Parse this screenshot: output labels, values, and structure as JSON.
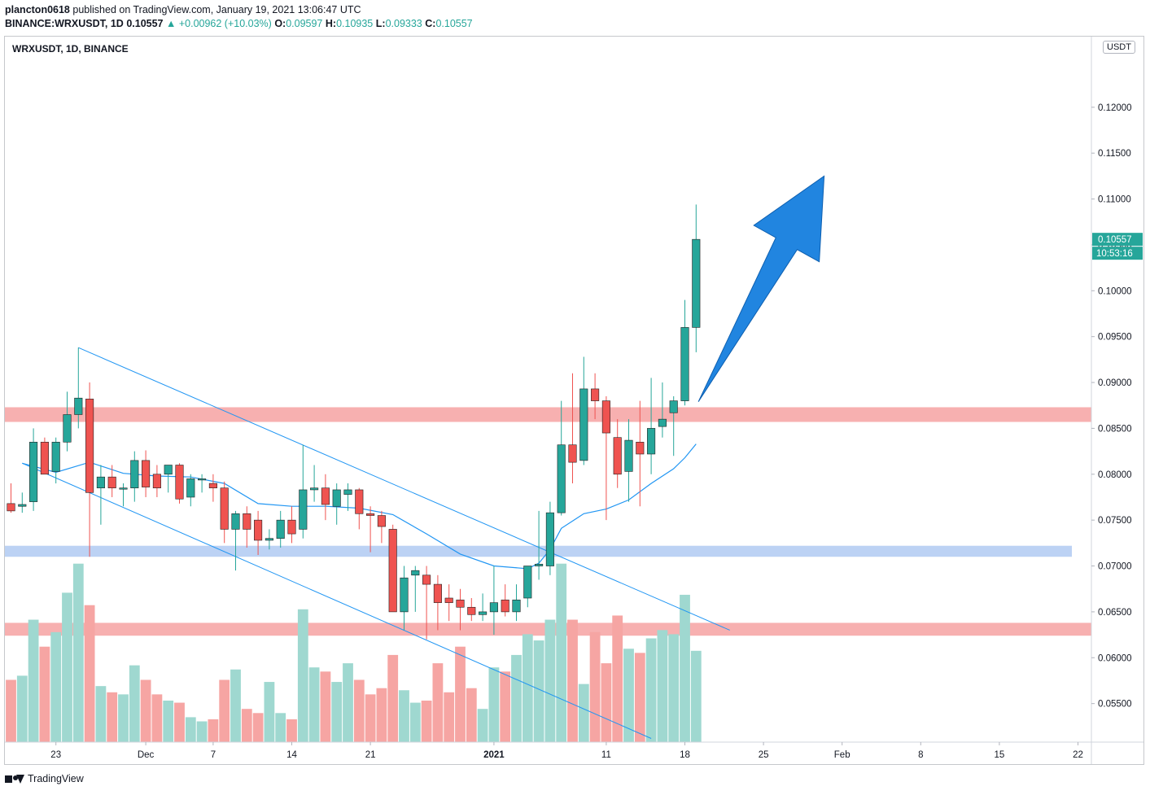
{
  "header": {
    "publisher": "plancton0618",
    "published_text": "published on TradingView.com, January 19, 2021 13:06:47 UTC",
    "symbol_line": "BINANCE:WRXUSDT, 1D",
    "last": "0.10557",
    "change": "▲ +0.00962 (+10.03%)",
    "o_label": "O:",
    "o": "0.09597",
    "h_label": "H:",
    "h": "0.10935",
    "l_label": "L:",
    "l": "0.09333",
    "c_label": "C:",
    "c": "0.10557"
  },
  "legend_title": "WRXUSDT, 1D, BINANCE",
  "unit": "USDT",
  "footer": {
    "brand": "TradingView"
  },
  "colors": {
    "up": "#26a69a",
    "down": "#ef5350",
    "vol_up": "#9fd8d0",
    "vol_down": "#f6a5a3",
    "sma": "#2196f3",
    "channel": "#2196f3",
    "red_zone": "#f7b0b0",
    "blue_zone": "#bcd2f4",
    "arrow": "#2185e0"
  },
  "chart_data": {
    "type": "candlestick",
    "symbol": "WRXUSDT",
    "interval": "1D",
    "exchange": "BINANCE",
    "ylim": [
      0.0508,
      0.1277
    ],
    "y_ticks": [
      "0.05500",
      "0.06000",
      "0.06500",
      "0.07000",
      "0.07500",
      "0.08000",
      "0.08500",
      "0.09000",
      "0.09500",
      "0.10000",
      "0.10500",
      "0.11000",
      "0.11500",
      "0.12000"
    ],
    "x_ticks": [
      {
        "label": "23",
        "i": 4
      },
      {
        "label": "Dec",
        "i": 12
      },
      {
        "label": "7",
        "i": 18
      },
      {
        "label": "14",
        "i": 25
      },
      {
        "label": "21",
        "i": 32
      },
      {
        "label": "2021",
        "i": 43
      },
      {
        "label": "11",
        "i": 53
      },
      {
        "label": "18",
        "i": 60
      },
      {
        "label": "25",
        "i": 67
      },
      {
        "label": "Feb",
        "i": 74
      },
      {
        "label": "8",
        "i": 81
      },
      {
        "label": "15",
        "i": 88
      },
      {
        "label": "22",
        "i": 95
      }
    ],
    "candles": [
      {
        "o": 0.0768,
        "h": 0.079,
        "l": 0.0758,
        "c": 0.076
      },
      {
        "o": 0.0765,
        "h": 0.078,
        "l": 0.0758,
        "c": 0.0767
      },
      {
        "o": 0.077,
        "h": 0.085,
        "l": 0.076,
        "c": 0.0835
      },
      {
        "o": 0.0835,
        "h": 0.084,
        "l": 0.08,
        "c": 0.08
      },
      {
        "o": 0.0803,
        "h": 0.084,
        "l": 0.079,
        "c": 0.0835
      },
      {
        "o": 0.0835,
        "h": 0.089,
        "l": 0.0825,
        "c": 0.0865
      },
      {
        "o": 0.0865,
        "h": 0.0938,
        "l": 0.085,
        "c": 0.0883
      },
      {
        "o": 0.0882,
        "h": 0.09,
        "l": 0.071,
        "c": 0.078
      },
      {
        "o": 0.0785,
        "h": 0.081,
        "l": 0.0745,
        "c": 0.0797
      },
      {
        "o": 0.0797,
        "h": 0.081,
        "l": 0.0775,
        "c": 0.0785
      },
      {
        "o": 0.0785,
        "h": 0.079,
        "l": 0.0765,
        "c": 0.0785
      },
      {
        "o": 0.0785,
        "h": 0.0825,
        "l": 0.077,
        "c": 0.0815
      },
      {
        "o": 0.0815,
        "h": 0.0826,
        "l": 0.0775,
        "c": 0.0786
      },
      {
        "o": 0.08,
        "h": 0.081,
        "l": 0.0775,
        "c": 0.0785
      },
      {
        "o": 0.08,
        "h": 0.081,
        "l": 0.078,
        "c": 0.081
      },
      {
        "o": 0.081,
        "h": 0.0812,
        "l": 0.0768,
        "c": 0.0773
      },
      {
        "o": 0.0775,
        "h": 0.08,
        "l": 0.0765,
        "c": 0.0795
      },
      {
        "o": 0.0795,
        "h": 0.08,
        "l": 0.078,
        "c": 0.0795
      },
      {
        "o": 0.079,
        "h": 0.08,
        "l": 0.077,
        "c": 0.0785
      },
      {
        "o": 0.0785,
        "h": 0.0792,
        "l": 0.0725,
        "c": 0.074
      },
      {
        "o": 0.074,
        "h": 0.076,
        "l": 0.0695,
        "c": 0.0757
      },
      {
        "o": 0.0757,
        "h": 0.0765,
        "l": 0.072,
        "c": 0.074
      },
      {
        "o": 0.075,
        "h": 0.076,
        "l": 0.0712,
        "c": 0.0728
      },
      {
        "o": 0.0728,
        "h": 0.074,
        "l": 0.0718,
        "c": 0.073
      },
      {
        "o": 0.073,
        "h": 0.076,
        "l": 0.072,
        "c": 0.075
      },
      {
        "o": 0.075,
        "h": 0.0765,
        "l": 0.0725,
        "c": 0.0735
      },
      {
        "o": 0.074,
        "h": 0.0832,
        "l": 0.073,
        "c": 0.0783
      },
      {
        "o": 0.0783,
        "h": 0.081,
        "l": 0.077,
        "c": 0.0785
      },
      {
        "o": 0.0785,
        "h": 0.08,
        "l": 0.075,
        "c": 0.0767
      },
      {
        "o": 0.0765,
        "h": 0.079,
        "l": 0.0745,
        "c": 0.0783
      },
      {
        "o": 0.0778,
        "h": 0.079,
        "l": 0.076,
        "c": 0.0783
      },
      {
        "o": 0.0783,
        "h": 0.0785,
        "l": 0.074,
        "c": 0.0757
      },
      {
        "o": 0.0757,
        "h": 0.0765,
        "l": 0.0715,
        "c": 0.0755
      },
      {
        "o": 0.0755,
        "h": 0.076,
        "l": 0.0725,
        "c": 0.0743
      },
      {
        "o": 0.074,
        "h": 0.0745,
        "l": 0.065,
        "c": 0.065
      },
      {
        "o": 0.065,
        "h": 0.07,
        "l": 0.063,
        "c": 0.0687
      },
      {
        "o": 0.069,
        "h": 0.07,
        "l": 0.065,
        "c": 0.0695
      },
      {
        "o": 0.069,
        "h": 0.07,
        "l": 0.062,
        "c": 0.068
      },
      {
        "o": 0.068,
        "h": 0.069,
        "l": 0.063,
        "c": 0.066
      },
      {
        "o": 0.0665,
        "h": 0.068,
        "l": 0.064,
        "c": 0.066
      },
      {
        "o": 0.0663,
        "h": 0.0675,
        "l": 0.063,
        "c": 0.0655
      },
      {
        "o": 0.0655,
        "h": 0.0665,
        "l": 0.064,
        "c": 0.0647
      },
      {
        "o": 0.0647,
        "h": 0.067,
        "l": 0.064,
        "c": 0.065
      },
      {
        "o": 0.065,
        "h": 0.07,
        "l": 0.0625,
        "c": 0.066
      },
      {
        "o": 0.0663,
        "h": 0.068,
        "l": 0.0645,
        "c": 0.065
      },
      {
        "o": 0.065,
        "h": 0.068,
        "l": 0.064,
        "c": 0.0663
      },
      {
        "o": 0.0665,
        "h": 0.07,
        "l": 0.0655,
        "c": 0.07
      },
      {
        "o": 0.07,
        "h": 0.076,
        "l": 0.0685,
        "c": 0.0702
      },
      {
        "o": 0.07,
        "h": 0.077,
        "l": 0.069,
        "c": 0.0758
      },
      {
        "o": 0.0758,
        "h": 0.088,
        "l": 0.0755,
        "c": 0.0832
      },
      {
        "o": 0.0832,
        "h": 0.091,
        "l": 0.079,
        "c": 0.0813
      },
      {
        "o": 0.0815,
        "h": 0.0928,
        "l": 0.081,
        "c": 0.0893
      },
      {
        "o": 0.0893,
        "h": 0.091,
        "l": 0.086,
        "c": 0.088
      },
      {
        "o": 0.088,
        "h": 0.0885,
        "l": 0.075,
        "c": 0.0845
      },
      {
        "o": 0.084,
        "h": 0.086,
        "l": 0.0785,
        "c": 0.08
      },
      {
        "o": 0.0803,
        "h": 0.086,
        "l": 0.077,
        "c": 0.0837
      },
      {
        "o": 0.0835,
        "h": 0.088,
        "l": 0.0765,
        "c": 0.0822
      },
      {
        "o": 0.0822,
        "h": 0.0905,
        "l": 0.08,
        "c": 0.085
      },
      {
        "o": 0.0852,
        "h": 0.09,
        "l": 0.084,
        "c": 0.086
      },
      {
        "o": 0.0867,
        "h": 0.0885,
        "l": 0.082,
        "c": 0.088
      },
      {
        "o": 0.088,
        "h": 0.099,
        "l": 0.0875,
        "c": 0.096
      },
      {
        "o": 0.096,
        "h": 0.1094,
        "l": 0.0933,
        "c": 0.1056
      }
    ],
    "volume_relative": [
      0.3,
      0.32,
      0.59,
      0.46,
      0.53,
      0.72,
      0.86,
      0.66,
      0.27,
      0.24,
      0.23,
      0.37,
      0.3,
      0.23,
      0.2,
      0.19,
      0.12,
      0.1,
      0.11,
      0.3,
      0.35,
      0.16,
      0.14,
      0.29,
      0.14,
      0.11,
      0.64,
      0.36,
      0.34,
      0.29,
      0.38,
      0.3,
      0.23,
      0.26,
      0.42,
      0.25,
      0.19,
      0.2,
      0.38,
      0.24,
      0.46,
      0.26,
      0.16,
      0.36,
      0.34,
      0.42,
      0.52,
      0.49,
      0.59,
      0.86,
      0.59,
      0.28,
      0.53,
      0.38,
      0.61,
      0.45,
      0.43,
      0.5,
      0.54,
      0.52,
      0.71,
      0.44
    ],
    "sma": [
      [
        1,
        0.0812
      ],
      [
        4,
        0.0802
      ],
      [
        7,
        0.0813
      ],
      [
        10,
        0.0801
      ],
      [
        13,
        0.0798
      ],
      [
        16,
        0.0797
      ],
      [
        19,
        0.079
      ],
      [
        22,
        0.0768
      ],
      [
        25,
        0.0765
      ],
      [
        28,
        0.0765
      ],
      [
        31,
        0.0763
      ],
      [
        34,
        0.0756
      ],
      [
        37,
        0.0735
      ],
      [
        40,
        0.0713
      ],
      [
        43,
        0.07
      ],
      [
        46,
        0.0697
      ],
      [
        47,
        0.0703
      ],
      [
        48,
        0.0718
      ],
      [
        49,
        0.0741
      ],
      [
        51,
        0.0757
      ],
      [
        53,
        0.0762
      ],
      [
        55,
        0.0772
      ],
      [
        57,
        0.079
      ],
      [
        59,
        0.0806
      ],
      [
        60,
        0.0818
      ],
      [
        61,
        0.0833
      ]
    ],
    "zones": [
      {
        "y_low": 0.0857,
        "y_high": 0.0873,
        "kind": "resistance"
      },
      {
        "y_low": 0.071,
        "y_high": 0.0722,
        "kind": "support"
      },
      {
        "y_low": 0.0624,
        "y_high": 0.0638,
        "kind": "resistance"
      }
    ],
    "channel": [
      {
        "from": [
          6,
          0.0938
        ],
        "to": [
          64,
          0.063
        ]
      },
      {
        "from": [
          1,
          0.0812
        ],
        "to": [
          57,
          0.0512
        ]
      }
    ],
    "arrow": {
      "from": [
        61.2,
        0.0879
      ],
      "to": [
        72.4,
        0.1125
      ]
    },
    "price_label": "0.10557",
    "countdown_label": "10:53:16"
  }
}
